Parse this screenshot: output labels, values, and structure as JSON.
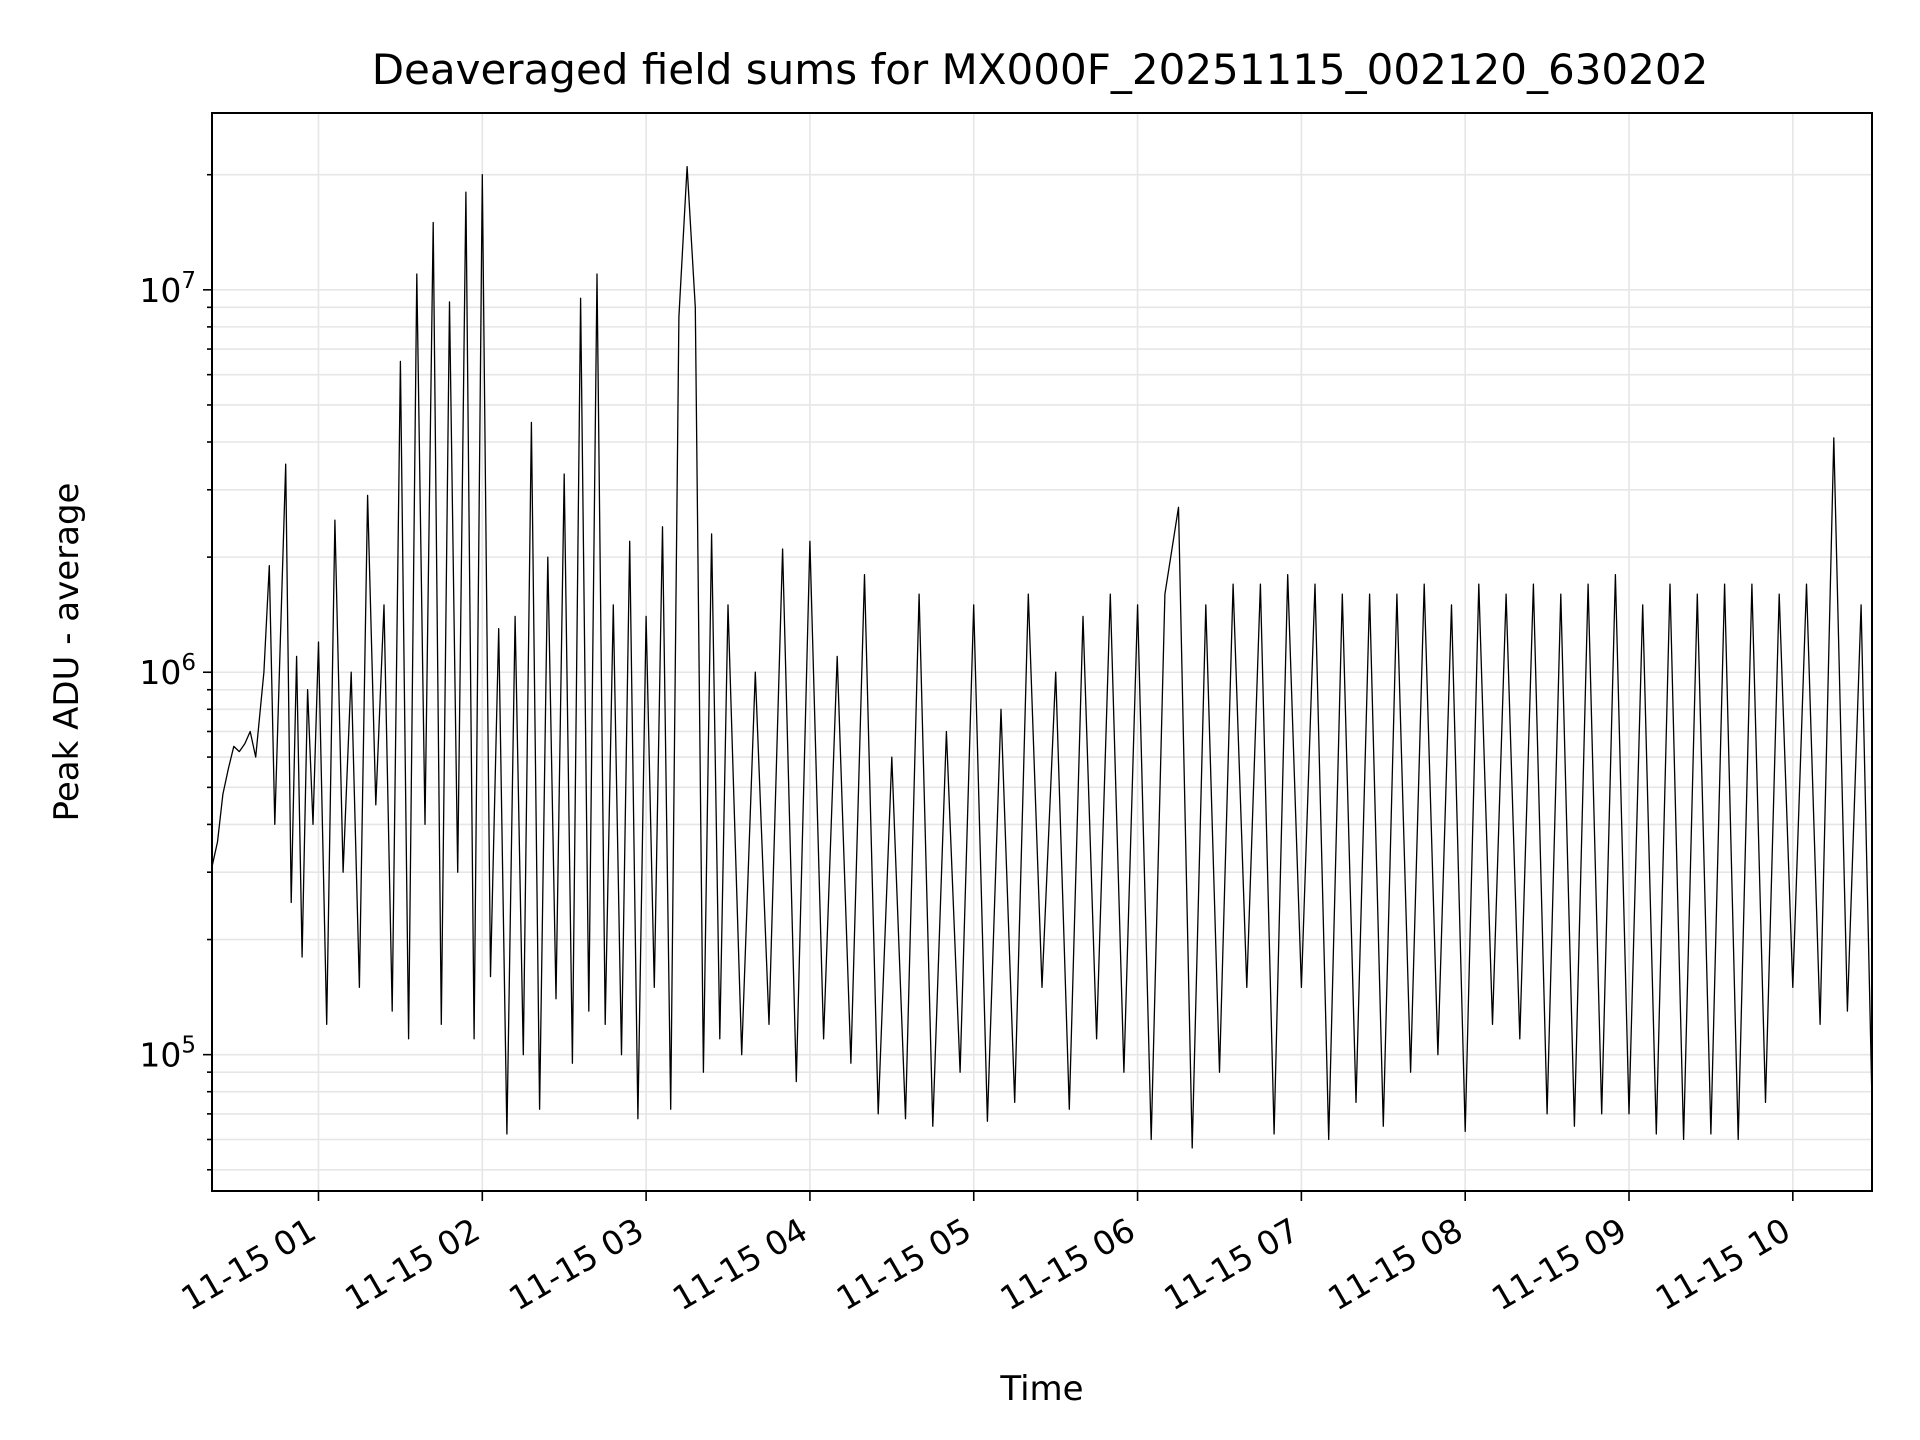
{
  "chart_data": {
    "type": "line",
    "title": "Deaveraged field sums for MX000F_20251115_002120_630202",
    "xlabel": "Time",
    "ylabel": "Peak ADU - average",
    "yscale": "log",
    "grid": true,
    "legend": "none",
    "xlim": [
      "2025-11-15T00:21",
      "2025-11-15T10:29"
    ],
    "ylim": [
      44000,
      29000000
    ],
    "x_ticks": [
      "11-15 01",
      "11-15 02",
      "11-15 03",
      "11-15 04",
      "11-15 05",
      "11-15 06",
      "11-15 07",
      "11-15 08",
      "11-15 09",
      "11-15 10"
    ],
    "y_ticks": [
      {
        "value": 100000,
        "base": "10",
        "exp": "5"
      },
      {
        "value": 1000000,
        "base": "10",
        "exp": "6"
      },
      {
        "value": 10000000,
        "base": "10",
        "exp": "7"
      }
    ],
    "series": [
      {
        "color": "#000000",
        "x": [
          "2025-11-15T00:21",
          "2025-11-15T00:23",
          "2025-11-15T00:25",
          "2025-11-15T00:27",
          "2025-11-15T00:29",
          "2025-11-15T00:31",
          "2025-11-15T00:33",
          "2025-11-15T00:35",
          "2025-11-15T00:37",
          "2025-11-15T00:40",
          "2025-11-15T00:42",
          "2025-11-15T00:44",
          "2025-11-15T00:46",
          "2025-11-15T00:48",
          "2025-11-15T00:50",
          "2025-11-15T00:52",
          "2025-11-15T00:54",
          "2025-11-15T00:56",
          "2025-11-15T00:58",
          "2025-11-15T01:00",
          "2025-11-15T01:03",
          "2025-11-15T01:06",
          "2025-11-15T01:09",
          "2025-11-15T01:12",
          "2025-11-15T01:15",
          "2025-11-15T01:18",
          "2025-11-15T01:21",
          "2025-11-15T01:24",
          "2025-11-15T01:27",
          "2025-11-15T01:30",
          "2025-11-15T01:33",
          "2025-11-15T01:36",
          "2025-11-15T01:39",
          "2025-11-15T01:42",
          "2025-11-15T01:45",
          "2025-11-15T01:48",
          "2025-11-15T01:51",
          "2025-11-15T01:54",
          "2025-11-15T01:57",
          "2025-11-15T02:00",
          "2025-11-15T02:03",
          "2025-11-15T02:06",
          "2025-11-15T02:09",
          "2025-11-15T02:12",
          "2025-11-15T02:15",
          "2025-11-15T02:18",
          "2025-11-15T02:21",
          "2025-11-15T02:24",
          "2025-11-15T02:27",
          "2025-11-15T02:30",
          "2025-11-15T02:33",
          "2025-11-15T02:36",
          "2025-11-15T02:39",
          "2025-11-15T02:42",
          "2025-11-15T02:45",
          "2025-11-15T02:48",
          "2025-11-15T02:51",
          "2025-11-15T02:54",
          "2025-11-15T02:57",
          "2025-11-15T03:00",
          "2025-11-15T03:03",
          "2025-11-15T03:06",
          "2025-11-15T03:09",
          "2025-11-15T03:12",
          "2025-11-15T03:15",
          "2025-11-15T03:18",
          "2025-11-15T03:21",
          "2025-11-15T03:24",
          "2025-11-15T03:27",
          "2025-11-15T03:30",
          "2025-11-15T03:35",
          "2025-11-15T03:40",
          "2025-11-15T03:45",
          "2025-11-15T03:50",
          "2025-11-15T03:55",
          "2025-11-15T04:00",
          "2025-11-15T04:05",
          "2025-11-15T04:10",
          "2025-11-15T04:15",
          "2025-11-15T04:20",
          "2025-11-15T04:25",
          "2025-11-15T04:30",
          "2025-11-15T04:35",
          "2025-11-15T04:40",
          "2025-11-15T04:45",
          "2025-11-15T04:50",
          "2025-11-15T04:55",
          "2025-11-15T05:00",
          "2025-11-15T05:05",
          "2025-11-15T05:10",
          "2025-11-15T05:15",
          "2025-11-15T05:20",
          "2025-11-15T05:25",
          "2025-11-15T05:30",
          "2025-11-15T05:35",
          "2025-11-15T05:40",
          "2025-11-15T05:45",
          "2025-11-15T05:50",
          "2025-11-15T05:55",
          "2025-11-15T06:00",
          "2025-11-15T06:05",
          "2025-11-15T06:10",
          "2025-11-15T06:15",
          "2025-11-15T06:20",
          "2025-11-15T06:25",
          "2025-11-15T06:30",
          "2025-11-15T06:35",
          "2025-11-15T06:40",
          "2025-11-15T06:45",
          "2025-11-15T06:50",
          "2025-11-15T06:55",
          "2025-11-15T07:00",
          "2025-11-15T07:05",
          "2025-11-15T07:10",
          "2025-11-15T07:15",
          "2025-11-15T07:20",
          "2025-11-15T07:25",
          "2025-11-15T07:30",
          "2025-11-15T07:35",
          "2025-11-15T07:40",
          "2025-11-15T07:45",
          "2025-11-15T07:50",
          "2025-11-15T07:55",
          "2025-11-15T08:00",
          "2025-11-15T08:05",
          "2025-11-15T08:10",
          "2025-11-15T08:15",
          "2025-11-15T08:20",
          "2025-11-15T08:25",
          "2025-11-15T08:30",
          "2025-11-15T08:35",
          "2025-11-15T08:40",
          "2025-11-15T08:45",
          "2025-11-15T08:50",
          "2025-11-15T08:55",
          "2025-11-15T09:00",
          "2025-11-15T09:05",
          "2025-11-15T09:10",
          "2025-11-15T09:15",
          "2025-11-15T09:20",
          "2025-11-15T09:25",
          "2025-11-15T09:30",
          "2025-11-15T09:35",
          "2025-11-15T09:40",
          "2025-11-15T09:45",
          "2025-11-15T09:50",
          "2025-11-15T09:55",
          "2025-11-15T10:00",
          "2025-11-15T10:05",
          "2025-11-15T10:10",
          "2025-11-15T10:15",
          "2025-11-15T10:20",
          "2025-11-15T10:25",
          "2025-11-15T10:29"
        ],
        "y": [
          310000,
          360000,
          480000,
          560000,
          640000,
          620000,
          650000,
          700000,
          600000,
          1000000,
          1900000,
          400000,
          1200000,
          3500000,
          250000,
          1100000,
          180000,
          900000,
          400000,
          1200000,
          120000,
          2500000,
          300000,
          1000000,
          150000,
          2900000,
          450000,
          1500000,
          130000,
          6500000,
          110000,
          11000000,
          400000,
          15000000,
          120000,
          9300000,
          300000,
          18000000,
          110000,
          20000000,
          160000,
          1300000,
          62000,
          1400000,
          100000,
          4500000,
          72000,
          2000000,
          140000,
          3300000,
          95000,
          9500000,
          130000,
          11000000,
          120000,
          1500000,
          100000,
          2200000,
          68000,
          1400000,
          150000,
          2400000,
          72000,
          8500000,
          21000000,
          9000000,
          90000,
          2300000,
          110000,
          1500000,
          100000,
          1000000,
          120000,
          2100000,
          85000,
          2200000,
          110000,
          1100000,
          95000,
          1800000,
          70000,
          600000,
          68000,
          1600000,
          65000,
          700000,
          90000,
          1500000,
          67000,
          800000,
          75000,
          1600000,
          150000,
          1000000,
          72000,
          1400000,
          110000,
          1600000,
          90000,
          1500000,
          60000,
          1600000,
          2700000,
          57000,
          1500000,
          90000,
          1700000,
          150000,
          1700000,
          62000,
          1800000,
          150000,
          1700000,
          60000,
          1600000,
          75000,
          1600000,
          65000,
          1600000,
          90000,
          1700000,
          100000,
          1500000,
          63000,
          1700000,
          120000,
          1600000,
          110000,
          1700000,
          70000,
          1600000,
          65000,
          1700000,
          70000,
          1800000,
          70000,
          1500000,
          62000,
          1700000,
          60000,
          1600000,
          62000,
          1700000,
          60000,
          1700000,
          75000,
          1600000,
          150000,
          1700000,
          120000,
          4100000,
          130000,
          1500000,
          75000
        ]
      }
    ]
  }
}
